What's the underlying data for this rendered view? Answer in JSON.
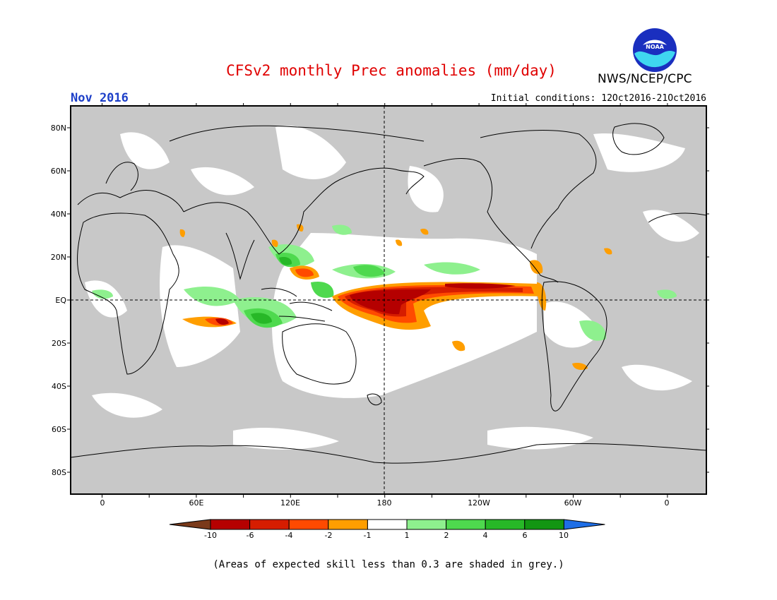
{
  "header": {
    "title": "CFSv2 monthly Prec anomalies (mm/day)",
    "agency": "NWS/NCEP/CPC",
    "logo_text": "NOAA",
    "month": "Nov 2016",
    "initial_conditions": "Initial conditions: 12Oct2016-21Oct2016"
  },
  "map": {
    "projection": "equirectangular",
    "lon_labels": [
      "0",
      "60E",
      "120E",
      "180",
      "120W",
      "60W",
      "0"
    ],
    "lat_labels": [
      "80N",
      "60N",
      "40N",
      "20N",
      "EQ",
      "20S",
      "40S",
      "60S",
      "80S"
    ],
    "reference_lines": [
      "EQ",
      "180"
    ],
    "skill_mask_color": "#c8c8c8",
    "coastline_color": "#000000"
  },
  "colorbar": {
    "labels": [
      "-10",
      "-6",
      "-4",
      "-2",
      "-1",
      "1",
      "2",
      "4",
      "6",
      "10"
    ],
    "colors": [
      "#7a3a1a",
      "#b50000",
      "#d61d00",
      "#ff4a00",
      "#ff9e00",
      "#ffffff",
      "#8ef08e",
      "#4ed94e",
      "#27b827",
      "#129612",
      "#1e6ee6"
    ]
  },
  "footnote": "(Areas of expected skill less than 0.3 are shaded in grey.)"
}
